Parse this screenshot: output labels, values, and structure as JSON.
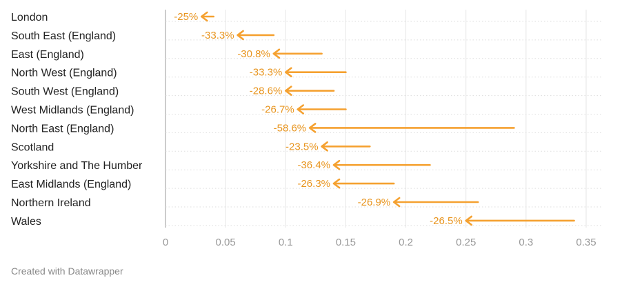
{
  "chart_data": {
    "type": "arrow",
    "title": "",
    "xlabel": "",
    "ylabel": "",
    "xlim": [
      0,
      0.35
    ],
    "x_ticks": [
      0,
      0.05,
      0.1,
      0.15,
      0.2,
      0.25,
      0.3,
      0.35
    ],
    "x_tick_labels": [
      "0",
      "0.05",
      "0.1",
      "0.15",
      "0.2",
      "0.25",
      "0.3",
      "0.35"
    ],
    "grid": true,
    "arrow_color": "#f5a130",
    "label_color": "#e8951f",
    "categories": [
      "London",
      "South East (England)",
      "East (England)",
      "North West (England)",
      "South West (England)",
      "West Midlands (England)",
      "North East (England)",
      "Scotland",
      "Yorkshire and The Humber",
      "East Midlands (England)",
      "Northern Ireland",
      "Wales"
    ],
    "start_values": [
      0.04,
      0.09,
      0.13,
      0.15,
      0.14,
      0.15,
      0.29,
      0.17,
      0.22,
      0.19,
      0.26,
      0.34
    ],
    "end_values": [
      0.03,
      0.06,
      0.09,
      0.1,
      0.1,
      0.11,
      0.12,
      0.13,
      0.14,
      0.14,
      0.19,
      0.25
    ],
    "change_labels": [
      "-25%",
      "-33.3%",
      "-30.8%",
      "-33.3%",
      "-28.6%",
      "-26.7%",
      "-58.6%",
      "-23.5%",
      "-36.4%",
      "-26.3%",
      "-26.9%",
      "-26.5%"
    ]
  },
  "footer": {
    "credit": "Created with Datawrapper"
  }
}
